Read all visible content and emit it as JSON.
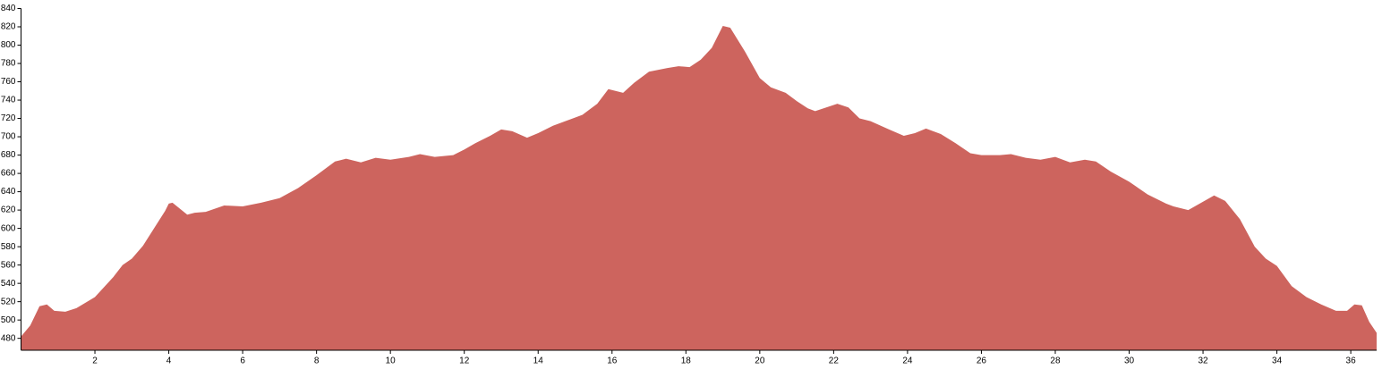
{
  "chart_data": {
    "type": "area",
    "color": "#cd645e",
    "x": [
      0,
      0.25,
      0.5,
      0.7,
      0.9,
      1.2,
      1.5,
      2,
      2.5,
      2.75,
      3,
      3.3,
      3.6,
      3.9,
      4.0,
      4.1,
      4.5,
      4.7,
      5,
      5.5,
      6,
      6.5,
      7,
      7.5,
      8,
      8.5,
      8.8,
      9.2,
      9.6,
      10,
      10.5,
      10.8,
      11.2,
      11.7,
      12,
      12.3,
      12.7,
      13,
      13.3,
      13.7,
      14,
      14.4,
      14.8,
      15.2,
      15.6,
      15.9,
      16.3,
      16.6,
      17,
      17.5,
      17.8,
      18.1,
      18.4,
      18.7,
      19,
      19.2,
      19.6,
      20,
      20.3,
      20.7,
      21,
      21.3,
      21.5,
      21.8,
      22.1,
      22.4,
      22.7,
      23,
      23.5,
      23.9,
      24.2,
      24.5,
      24.9,
      25.3,
      25.7,
      26,
      26.5,
      26.8,
      27.2,
      27.6,
      28,
      28.4,
      28.8,
      29.1,
      29.5,
      30,
      30.5,
      31,
      31.2,
      31.6,
      32.3,
      32.6,
      33,
      33.4,
      33.7,
      34,
      34.4,
      34.8,
      35.2,
      35.6,
      35.9,
      36.1,
      36.3,
      36.5,
      36.7
    ],
    "values": [
      482,
      494,
      515,
      517,
      510,
      509,
      513,
      525,
      547,
      560,
      567,
      581,
      600,
      619,
      627,
      628,
      615,
      617,
      618,
      625,
      624,
      628,
      633,
      644,
      658,
      673,
      676,
      672,
      677,
      675,
      678,
      681,
      678,
      680,
      686,
      693,
      701,
      708,
      706,
      699,
      704,
      712,
      718,
      724,
      736,
      752,
      748,
      759,
      771,
      775,
      777,
      776,
      784,
      797,
      821,
      819,
      793,
      764,
      754,
      748,
      739,
      731,
      728,
      732,
      736,
      732,
      720,
      717,
      708,
      701,
      704,
      709,
      703,
      693,
      682,
      680,
      680,
      681,
      677,
      675,
      678,
      672,
      675,
      673,
      662,
      651,
      637,
      627,
      624,
      620,
      636,
      630,
      610,
      580,
      567,
      559,
      537,
      525,
      517,
      510,
      510,
      517,
      516,
      498,
      486
    ],
    "xlim": [
      0,
      36.7
    ],
    "xticks": [
      2,
      4,
      6,
      8,
      10,
      12,
      14,
      16,
      18,
      20,
      22,
      24,
      26,
      28,
      30,
      32,
      34,
      36
    ],
    "ylim": [
      467,
      840
    ],
    "yticks": [
      480,
      500,
      520,
      540,
      560,
      580,
      600,
      620,
      640,
      660,
      680,
      700,
      720,
      740,
      760,
      780,
      800,
      820,
      840
    ]
  }
}
